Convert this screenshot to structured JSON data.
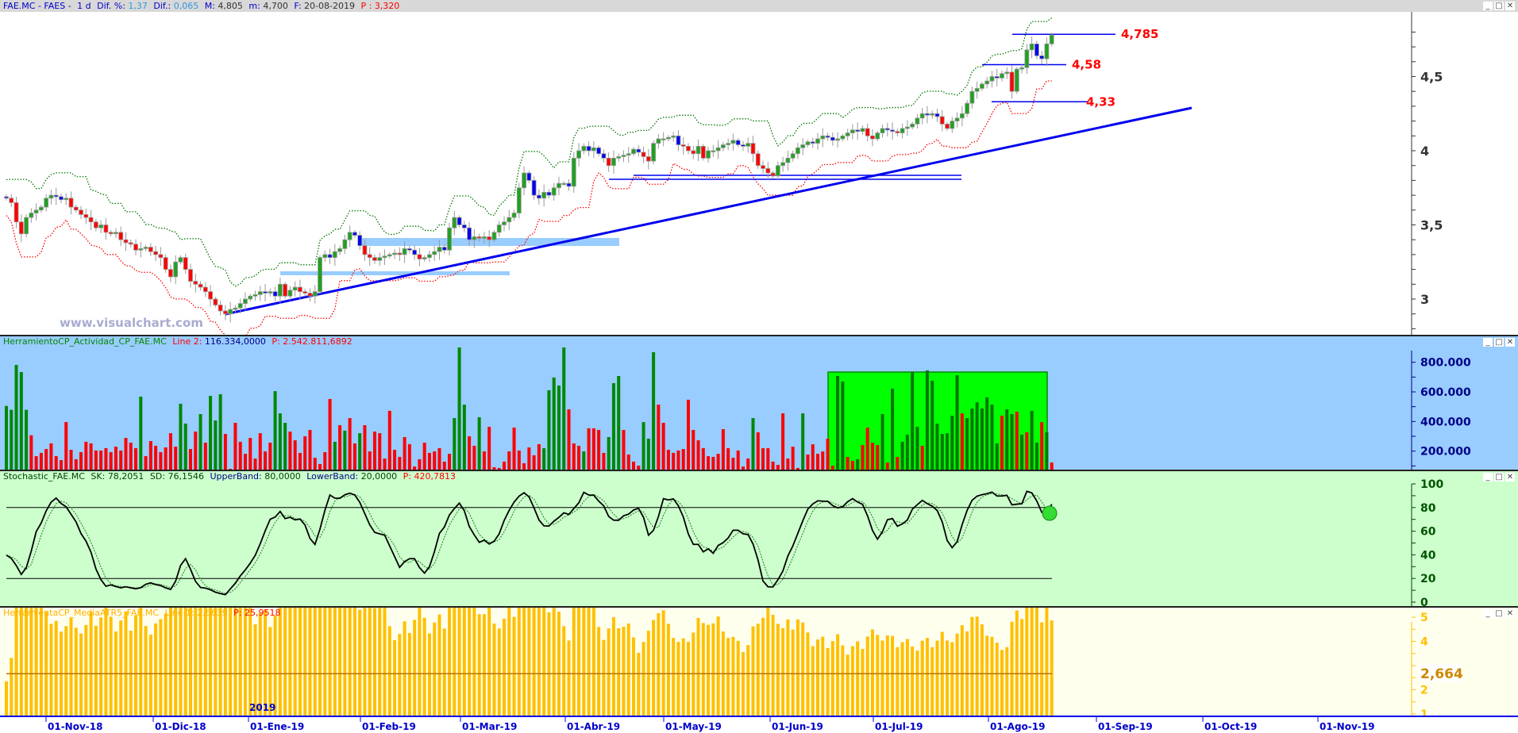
{
  "price_panel": {
    "header": {
      "symbol": "FAE.MC - FAES -",
      "period": "1 d",
      "dif_pct_label": "Dif. %:",
      "dif_pct": "1,37",
      "dif_label": "Dif.:",
      "dif": "0,065",
      "max_label": "M:",
      "max": "4,805",
      "min_label": "m:",
      "min": "4,700",
      "date_label": "F:",
      "date": "20-08-2019",
      "p_label": "P :",
      "p": "3,320"
    },
    "watermark": "www.visualchart.com",
    "y_ticks": [
      "4,5",
      "4",
      "3,5",
      "3"
    ],
    "levels": [
      {
        "label": "4,785",
        "value": 4.785
      },
      {
        "label": "4,58",
        "value": 4.58
      },
      {
        "label": "4,33",
        "value": 4.33
      }
    ],
    "colors": {
      "up": "#22a022",
      "down": "#ff0000",
      "neutral": "#0000ee",
      "upper_band": "#007700",
      "lower_band": "#ff0000",
      "trendline": "#0000ee",
      "zone": "#99ccff"
    }
  },
  "volume_panel": {
    "header": {
      "name": "HerramientoCP_Actividad_CP_FAE.MC",
      "line_label": "Line 2:",
      "line_value": "116.334,0000",
      "p_label": "P:",
      "p_value": "2.542.811,6892"
    },
    "y_ticks": [
      "800.000",
      "600.000",
      "400.000",
      "200.000"
    ],
    "colors": {
      "bg": "#99ccff",
      "up": "#008800",
      "down": "#ff0000",
      "box": "#00ff00"
    }
  },
  "stoch_panel": {
    "header": {
      "name": "Stochastic_FAE.MC",
      "sk_label": "SK:",
      "sk": "78,2051",
      "sd_label": "SD:",
      "sd": "76,1546",
      "upper_label": "UpperBand:",
      "upper": "80,0000",
      "lower_label": "LowerBand:",
      "lower": "20,0000",
      "p_label": "P:",
      "p": "420,7813"
    },
    "y_ticks": [
      "100",
      "80",
      "60",
      "40",
      "20",
      "0"
    ],
    "upper_band": 80,
    "lower_band": 20
  },
  "atr_panel": {
    "header": {
      "name": "HerramientaCP_MediaATR5_FAE.MC",
      "line_label": "Line 1:",
      "line_value": "2,6639",
      "p_label": "P:",
      "p": "25,9518"
    },
    "y_ticks": [
      "5",
      "4",
      "2",
      "1"
    ],
    "last_value_label": "2,664",
    "mean": 2.664
  },
  "x_axis": {
    "year_label": "2019",
    "ticks": [
      "01-Nov-18",
      "01-Dic-18",
      "01-Ene-19",
      "01-Feb-19",
      "01-Mar-19",
      "01-Abr-19",
      "01-May-19",
      "01-Jun-19",
      "01-Jul-19",
      "01-Ago-19",
      "01-Sep-19",
      "01-Oct-19",
      "01-Nov-19"
    ]
  },
  "chart_data": {
    "type": "candlestick",
    "close": [
      3.68,
      3.65,
      3.52,
      3.44,
      3.55,
      3.58,
      3.6,
      3.62,
      3.68,
      3.7,
      3.69,
      3.67,
      3.68,
      3.62,
      3.6,
      3.57,
      3.55,
      3.52,
      3.48,
      3.5,
      3.45,
      3.44,
      3.45,
      3.4,
      3.38,
      3.37,
      3.33,
      3.34,
      3.35,
      3.32,
      3.3,
      3.28,
      3.2,
      3.15,
      3.25,
      3.28,
      3.2,
      3.12,
      3.1,
      3.08,
      3.05,
      3.0,
      2.96,
      2.92,
      2.9,
      2.93,
      2.94,
      2.97,
      3.0,
      3.02,
      3.03,
      3.05,
      3.04,
      3.05,
      3.02,
      3.1,
      3.02,
      3.06,
      3.08,
      3.05,
      3.04,
      3.02,
      3.05,
      3.28,
      3.3,
      3.28,
      3.32,
      3.34,
      3.4,
      3.45,
      3.43,
      3.36,
      3.3,
      3.28,
      3.26,
      3.28,
      3.29,
      3.3,
      3.31,
      3.3,
      3.34,
      3.33,
      3.3,
      3.27,
      3.28,
      3.3,
      3.32,
      3.35,
      3.33,
      3.48,
      3.55,
      3.5,
      3.48,
      3.4,
      3.42,
      3.41,
      3.42,
      3.4,
      3.45,
      3.5,
      3.52,
      3.55,
      3.58,
      3.75,
      3.85,
      3.8,
      3.7,
      3.68,
      3.72,
      3.7,
      3.75,
      3.78,
      3.78,
      3.76,
      3.95,
      4.0,
      4.03,
      4.0,
      4.02,
      3.98,
      3.95,
      3.9,
      3.95,
      3.96,
      3.97,
      3.98,
      4.01,
      3.99,
      3.96,
      3.93,
      4.05,
      4.08,
      4.08,
      4.09,
      4.1,
      4.04,
      4.03,
      4.0,
      3.98,
      4.03,
      3.95,
      4.0,
      4.0,
      4.02,
      4.04,
      4.05,
      4.07,
      4.04,
      4.03,
      4.05,
      3.98,
      3.9,
      3.88,
      3.85,
      3.83,
      3.9,
      3.92,
      3.95,
      3.98,
      4.02,
      4.04,
      4.06,
      4.05,
      4.08,
      4.1,
      4.09,
      4.07,
      4.08,
      4.1,
      4.12,
      4.14,
      4.13,
      4.15,
      4.1,
      4.08,
      4.12,
      4.15,
      4.14,
      4.13,
      4.12,
      4.15,
      4.16,
      4.18,
      4.22,
      4.25,
      4.24,
      4.25,
      4.23,
      4.18,
      4.15,
      4.2,
      4.22,
      4.25,
      4.32,
      4.4,
      4.42,
      4.45,
      4.47,
      4.5,
      4.49,
      4.52,
      4.53,
      4.4,
      4.55,
      4.56,
      4.68,
      4.72,
      4.64,
      4.62,
      4.72,
      4.78
    ],
    "volume": [
      505000,
      479000,
      782000,
      734000,
      479000,
      307000,
      166000,
      188000,
      214000,
      252000,
      166000,
      139000,
      396000,
      209000,
      145000,
      193000,
      263000,
      252000,
      204000,
      204000,
      220000,
      193000,
      230000,
      204000,
      289000,
      257000,
      220000,
      568000,
      166000,
      268000,
      236000,
      193000,
      225000,
      321000,
      230000,
      520000,
      386000,
      214000,
      332000,
      450000,
      257000,
      573000,
      407000,
      584000,
      316000,
      80000,
      391000,
      263000,
      182000,
      289000,
      150000,
      321000,
      198000,
      257000,
      605000,
      455000,
      391000,
      332000,
      273000,
      188000,
      300000,
      343000,
      155000,
      113000,
      193000,
      552000,
      263000,
      375000,
      338000,
      423000,
      252000,
      321000,
      375000,
      198000,
      332000,
      321000,
      150000,
      472000,
      209000,
      161000,
      295000,
      247000,
      96000,
      145000,
      257000,
      188000,
      198000,
      220000,
      129000,
      182000,
      423000,
      900000,
      514000,
      300000,
      236000,
      429000,
      198000,
      364000,
      91000,
      86000,
      129000,
      198000,
      359000,
      204000,
      118000,
      225000,
      172000,
      247000,
      220000,
      611000,
      697000,
      643000,
      900000,
      482000,
      252000,
      236000,
      198000,
      354000,
      354000,
      343000,
      188000,
      295000,
      659000,
      707000,
      343000,
      177000,
      129000,
      102000,
      396000,
      284000,
      868000,
      514000,
      391000,
      209000,
      188000,
      204000,
      214000,
      547000,
      343000,
      273000,
      220000,
      166000,
      161000,
      182000,
      348000,
      220000,
      155000,
      204000,
      96000,
      150000,
      423000,
      327000,
      220000,
      220000,
      129000,
      107000,
      455000,
      150000,
      230000,
      86000,
      455000,
      177000,
      246000,
      182000,
      198000,
      284000,
      102000,
      707000,
      670000,
      161000,
      134000,
      145000,
      241000,
      359000,
      257000,
      241000,
      450000,
      123000,
      622000,
      161000,
      263000,
      311000,
      734000,
      364000,
      236000,
      745000,
      675000,
      386000,
      316000,
      321000,
      439000,
      713000,
      455000,
      423000,
      488000,
      530000,
      488000,
      563000,
      514000,
      252000,
      439000,
      482000,
      450000,
      466000,
      311000,
      327000,
      472000,
      257000,
      396000,
      327000,
      123000
    ],
    "volume_colors": "GGGGGRRRRRRRRRRRRRRRRRRRRRRGRRRRRRRGGRRGRGGGRRRRRRRRRRGGGRRRRRRRRRGRGRRGRRRRRRRRRRRRRRRRRRGGGRRGRRRRRRRRRRRRGGGGGRRRGRRRRGGGRRRRGGGRRRRRRRRRRRRRRRRRRRGRRRRRRRRRGRRRRRRGGRRGRRRRGRGRGGGGRGGGGGGGRGGGGGGGRGGRGRGGRGRR",
    "ylim": [
      2.75,
      4.9
    ]
  }
}
